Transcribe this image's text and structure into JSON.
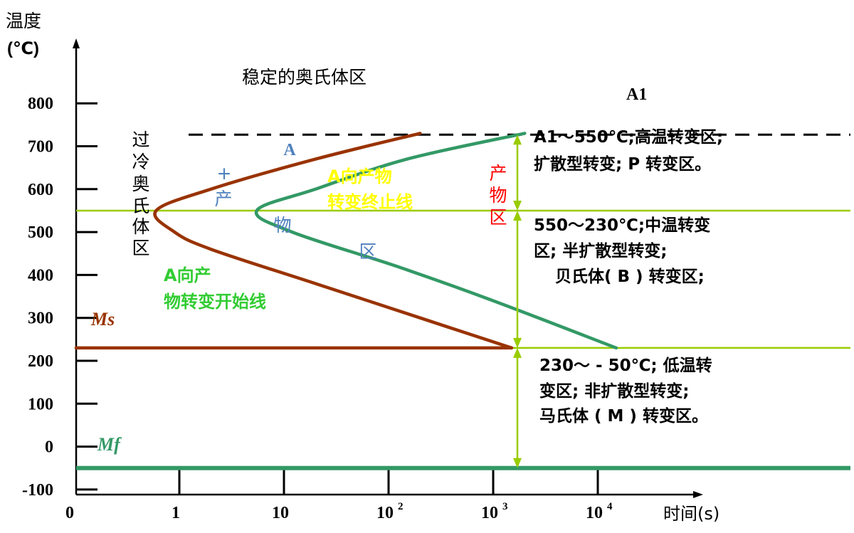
{
  "chart_data": {
    "type": "line",
    "title": "稳定的奥氏体区",
    "ylabel_line1": "温度",
    "ylabel_line2": "(℃)",
    "xlabel": "时间(s)",
    "ylim": [
      -150,
      950
    ],
    "y_ticks": [
      {
        "value": 800,
        "label": "800"
      },
      {
        "value": 700,
        "label": "700"
      },
      {
        "value": 600,
        "label": "600"
      },
      {
        "value": 500,
        "label": "500"
      },
      {
        "value": 400,
        "label": "400"
      },
      {
        "value": 300,
        "label": "300"
      },
      {
        "value": 200,
        "label": "200"
      },
      {
        "value": 100,
        "label": "100"
      },
      {
        "value": 0,
        "label": "0"
      },
      {
        "value": -100,
        "label": "-100"
      }
    ],
    "x_ticks": [
      {
        "value": 0,
        "label": "0",
        "sup": ""
      },
      {
        "value": 1,
        "label": "1",
        "sup": ""
      },
      {
        "value": 10,
        "label": "10",
        "sup": ""
      },
      {
        "value": 100,
        "label": "10",
        "sup": "2"
      },
      {
        "value": 1000,
        "label": "10",
        "sup": "3"
      },
      {
        "value": 10000,
        "label": "10",
        "sup": "4"
      }
    ],
    "reference_lines": [
      {
        "name": "A1",
        "label": "A1",
        "temperature": 727,
        "style": "dashed",
        "color": "#000000"
      },
      {
        "name": "550",
        "temperature": 550,
        "color": "#99cc00"
      },
      {
        "name": "230",
        "temperature": 230,
        "color": "#99cc00"
      },
      {
        "name": "Mf",
        "label": "Mf",
        "temperature": -50,
        "color": "#339966"
      }
    ],
    "series": [
      {
        "name": "A向产物转变开始线",
        "color": "#993300",
        "points": [
          [
            200,
            730
          ],
          [
            20,
            670
          ],
          [
            2,
            600
          ],
          [
            0.6,
            550
          ],
          [
            0.9,
            500
          ],
          [
            2,
            460
          ],
          [
            20,
            380
          ],
          [
            200,
            300
          ],
          [
            1500,
            230
          ]
        ]
      },
      {
        "name": "A向产物转变终止线",
        "color": "#339966",
        "points": [
          [
            2000,
            730
          ],
          [
            150,
            670
          ],
          [
            20,
            600
          ],
          [
            5.5,
            550
          ],
          [
            12,
            500
          ],
          [
            120,
            420
          ],
          [
            1000,
            340
          ],
          [
            15000,
            230
          ]
        ]
      },
      {
        "name": "Ms",
        "color": "#993300",
        "points": [
          [
            0,
            230
          ],
          [
            1500,
            230
          ]
        ]
      }
    ],
    "region_labels": [
      {
        "name": "supercooled-austenite",
        "lines": [
          "过",
          "冷",
          "奥",
          "氏",
          "体",
          "区"
        ],
        "color": "#000000"
      },
      {
        "name": "a-plus-product",
        "lines": [
          "A",
          "+",
          "产",
          "物",
          "区"
        ],
        "color": "#4f81bd"
      },
      {
        "name": "product-region",
        "lines": [
          "产",
          "物",
          "区"
        ],
        "color": "#ff0000"
      }
    ],
    "annotations": [
      {
        "name": "start-line-label",
        "lines": [
          "A向产",
          "物转变开始线"
        ],
        "color": "#33cc33"
      },
      {
        "name": "finish-line-label",
        "lines": [
          "A向产物",
          "转变终止线"
        ],
        "color": "#ffff00"
      },
      {
        "name": "high-temp-desc",
        "lines": [
          "A1～550℃;高温转变区;",
          "扩散型转变; P 转变区。"
        ],
        "color": "#000000"
      },
      {
        "name": "mid-temp-desc",
        "lines": [
          "550～230℃;中温转变",
          "区; 半扩散型转变;",
          "贝氏体( B ) 转变区;"
        ],
        "color": "#000000"
      },
      {
        "name": "low-temp-desc",
        "lines": [
          "230～ - 50℃; 低温转",
          "变区; 非扩散型转变;",
          "马氏体 ( M ) 转变区。"
        ],
        "color": "#000000"
      }
    ],
    "grid": false,
    "legend": "none"
  }
}
